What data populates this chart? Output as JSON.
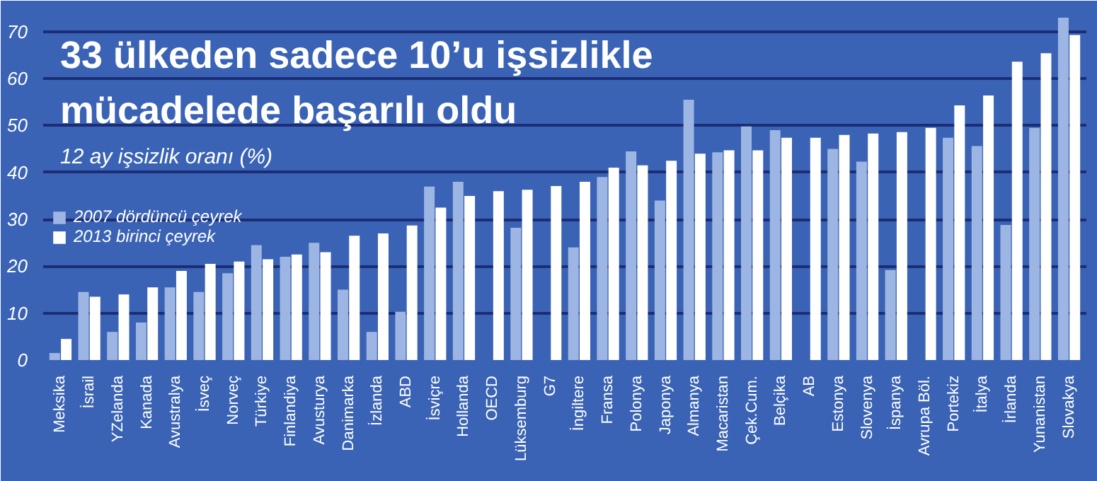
{
  "chart_data": {
    "type": "bar",
    "title": "33 ülkeden sadece 10’u işsizlikle mücadelede başarılı oldu",
    "subtitle": "12 ay işsizlik oranı (%)",
    "categories": [
      "Meksika",
      "İsrail",
      "YZelanda",
      "Kanada",
      "Avustralya",
      "İsveç",
      "Norveç",
      "Türkiye",
      "Finlandiya",
      "Avusturya",
      "Danimarka",
      "İzlanda",
      "ABD",
      "İsviçre",
      "Hollanda",
      "OECD",
      "Lüksemburg",
      "G7",
      "İngiltere",
      "Fransa",
      "Polonya",
      "Japonya",
      "Almanya",
      "Macaristan",
      "Çek.Cum.",
      "Belçika",
      "AB",
      "Estonya",
      "Slovenya",
      "İspanya",
      "Avrupa Böl.",
      "Portekiz",
      "İtalya",
      "İrlanda",
      "Yunanistan",
      "Slovakya"
    ],
    "series": [
      {
        "name": "2007 dördüncü çeyrek",
        "color": "#9db5e3",
        "values": [
          1.5,
          14.5,
          6,
          8,
          15.5,
          14.5,
          18.5,
          24.5,
          22,
          25,
          15,
          6,
          10.3,
          37,
          38,
          null,
          28.2,
          null,
          24,
          39,
          44.5,
          34,
          55.5,
          44.3,
          49.8,
          49,
          null,
          45,
          42.3,
          19.2,
          null,
          47.4,
          45.6,
          28.8,
          49.5,
          73
        ]
      },
      {
        "name": "2013 birinci çeyrek",
        "color": "#ffffff",
        "values": [
          4.5,
          13.5,
          14,
          15.5,
          19,
          20.5,
          21,
          21.5,
          22.5,
          23,
          26.5,
          27,
          28.7,
          32.5,
          35,
          36,
          36.3,
          37.1,
          38,
          41,
          41.5,
          42.5,
          44,
          44.7,
          44.7,
          47.4,
          47.4,
          48,
          48.3,
          48.6,
          49.5,
          54.3,
          56.4,
          63.6,
          65.4,
          69.3
        ]
      }
    ],
    "ylim": [
      0,
      76
    ],
    "yticks": [
      0,
      10,
      20,
      30,
      40,
      50,
      60,
      70
    ],
    "grid": "y",
    "legend": "left"
  }
}
